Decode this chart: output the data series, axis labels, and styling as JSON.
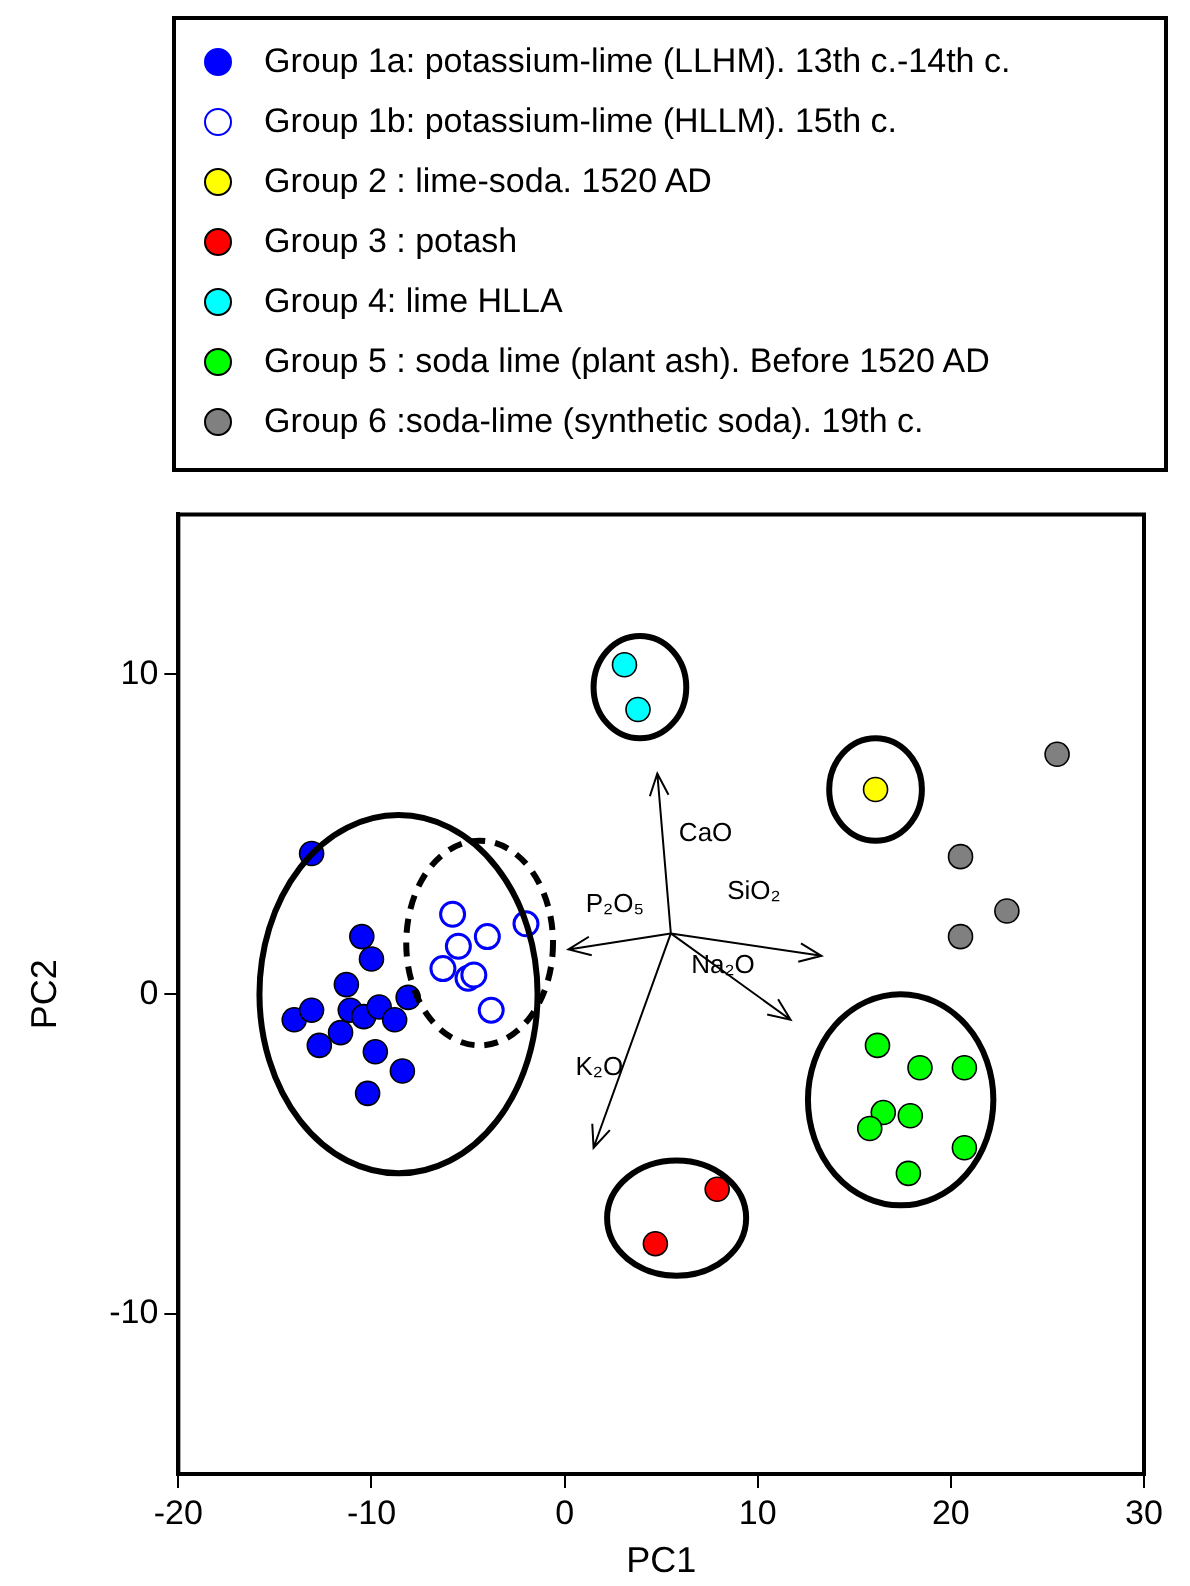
{
  "chart_data": {
    "type": "scatter",
    "xlabel": "PC1",
    "ylabel": "PC2",
    "xlim": [
      -20,
      30
    ],
    "xticks": [
      -20,
      -10,
      0,
      10,
      20,
      30
    ],
    "ylim": [
      -15,
      15
    ],
    "yticks": [
      -10,
      0,
      10
    ],
    "grid": false,
    "legend": "top",
    "marker": "circle",
    "series": [
      {
        "name": "Group 1a: potassium-lime (LLHM). 13th c.-14th c.",
        "color": "#0000ff",
        "x": [
          -13.1,
          -10.5,
          -10.0,
          -11.3,
          -14.0,
          -13.1,
          -11.1,
          -10.4,
          -9.6,
          -8.8,
          -8.1,
          -11.6,
          -12.7,
          -9.8,
          -8.4,
          -10.2
        ],
        "values": [
          4.4,
          1.8,
          1.1,
          0.3,
          -0.8,
          -0.5,
          -0.5,
          -0.7,
          -0.4,
          -0.8,
          -0.1,
          -1.2,
          -1.6,
          -1.8,
          -2.4,
          -3.1
        ]
      },
      {
        "name": "Group 1b: potassium-lime (HLLM). 15th c.",
        "color": "#0000ff",
        "x": [
          -5.8,
          -4.0,
          -2.0,
          -5.5,
          -6.3,
          -5.0,
          -4.7,
          -3.8
        ],
        "values": [
          2.5,
          1.8,
          2.2,
          1.5,
          0.8,
          0.5,
          0.6,
          -0.5
        ]
      },
      {
        "name": "Group 2 : lime-soda. 1520 AD",
        "color": "#ffff00",
        "x": [
          16.1
        ],
        "values": [
          6.4
        ]
      },
      {
        "name": "Group 3 : potash",
        "color": "#ff0000",
        "x": [
          7.9,
          4.7
        ],
        "values": [
          -6.1,
          -7.8
        ]
      },
      {
        "name": "Group 4: lime HLLA",
        "color": "#00ffff",
        "x": [
          3.1,
          3.8
        ],
        "values": [
          10.3,
          8.9
        ]
      },
      {
        "name": "Group 5 : soda lime (plant ash). Before 1520 AD",
        "color": "#00ff00",
        "x": [
          16.2,
          18.4,
          20.7,
          16.5,
          17.9,
          15.8,
          20.7,
          17.8
        ],
        "values": [
          -1.6,
          -2.3,
          -2.3,
          -3.7,
          -3.8,
          -4.2,
          -4.8,
          -5.6
        ]
      },
      {
        "name": "Group 6 :soda-lime (synthetic soda). 19th c.",
        "color": "#808080",
        "x": [
          25.5,
          20.5,
          22.9,
          20.5
        ],
        "values": [
          7.5,
          4.3,
          2.6,
          1.8
        ]
      }
    ],
    "annotations": [
      "CaO",
      "P₂O₅",
      "SiO₂",
      "Na₂O",
      "K₂O"
    ]
  }
}
